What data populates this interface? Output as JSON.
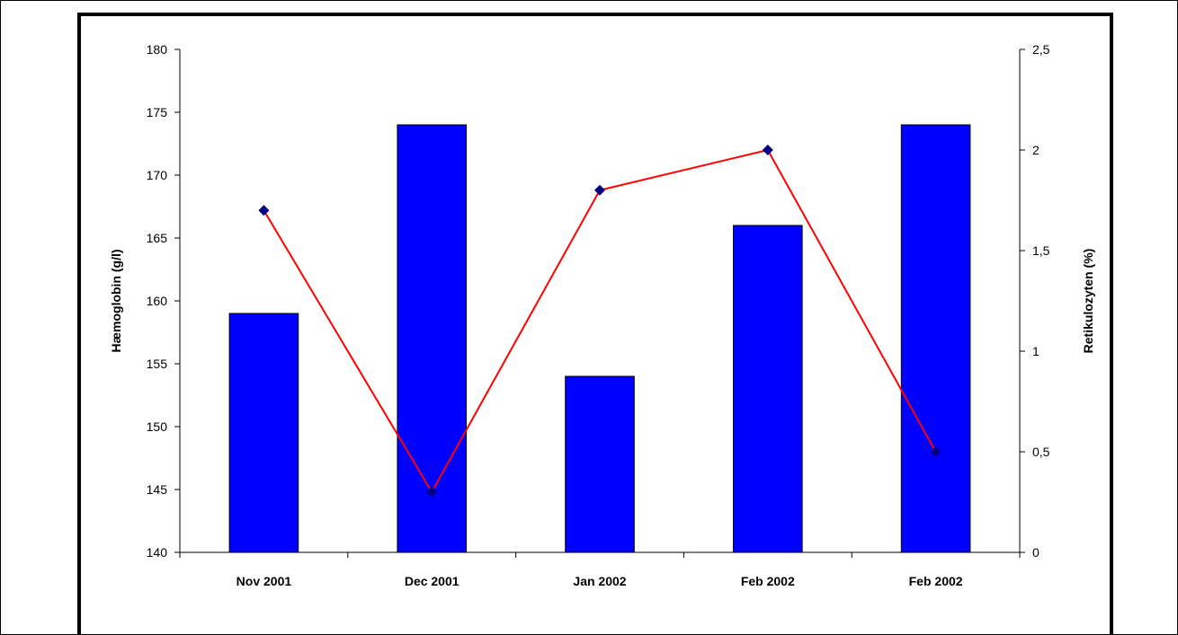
{
  "chart_data": {
    "type": "bar",
    "categories": [
      "Nov 2001",
      "Dec 2001",
      "Jan 2002",
      "Feb 2002",
      "Feb 2002"
    ],
    "ylabel": "Hæmoglobin (g/l)",
    "y2label": "Retikulozyten (%)",
    "ylim": [
      140,
      180
    ],
    "y2lim": [
      0,
      2.5
    ],
    "yticks": [
      "140",
      "145",
      "150",
      "155",
      "160",
      "165",
      "170",
      "175",
      "180"
    ],
    "y2ticks": [
      "0",
      "0,5",
      "1",
      "1,5",
      "2",
      "2,5"
    ],
    "grid": false,
    "series": [
      {
        "type": "bar",
        "axis": "left",
        "color": "#0000ff",
        "values": [
          159,
          174,
          154,
          166,
          174
        ]
      },
      {
        "type": "line",
        "axis": "right",
        "color": "#ff0000",
        "marker_color": "#000080",
        "values": [
          1.7,
          0.3,
          1.8,
          2.0,
          0.5
        ]
      }
    ]
  }
}
